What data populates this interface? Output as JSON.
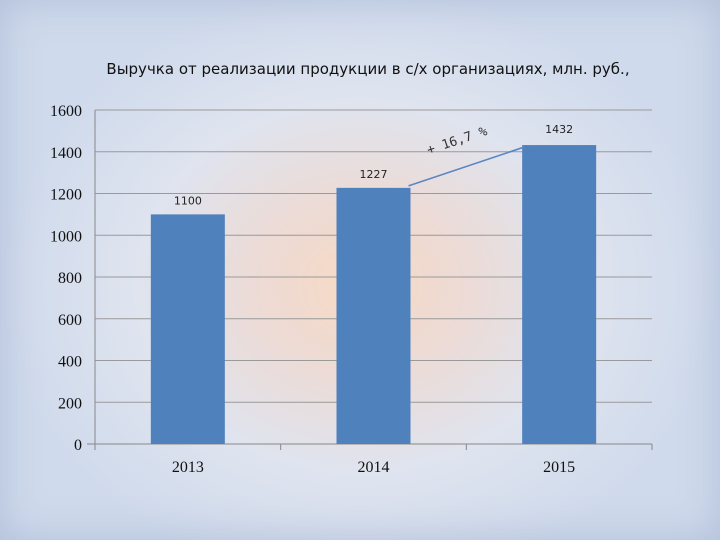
{
  "chart_data": {
    "type": "bar",
    "title": "Выручка от реализации продукции в с/х организациях, млн. руб.,",
    "xlabel": "",
    "ylabel": "",
    "categories": [
      "2013",
      "2014",
      "2015"
    ],
    "values": [
      1100,
      1227,
      1432
    ],
    "data_labels": [
      "1100",
      "1227",
      "1432"
    ],
    "ylim": [
      0,
      1600
    ],
    "yticks": [
      "0",
      "200",
      "400",
      "600",
      "800",
      "1000",
      "1200",
      "1400",
      "1600"
    ],
    "grid": true,
    "legend": "none",
    "bar_color": "#4f81bd",
    "annotation": {
      "text": "+ 16,7 %",
      "from_category": "2014",
      "to_category": "2015"
    }
  }
}
